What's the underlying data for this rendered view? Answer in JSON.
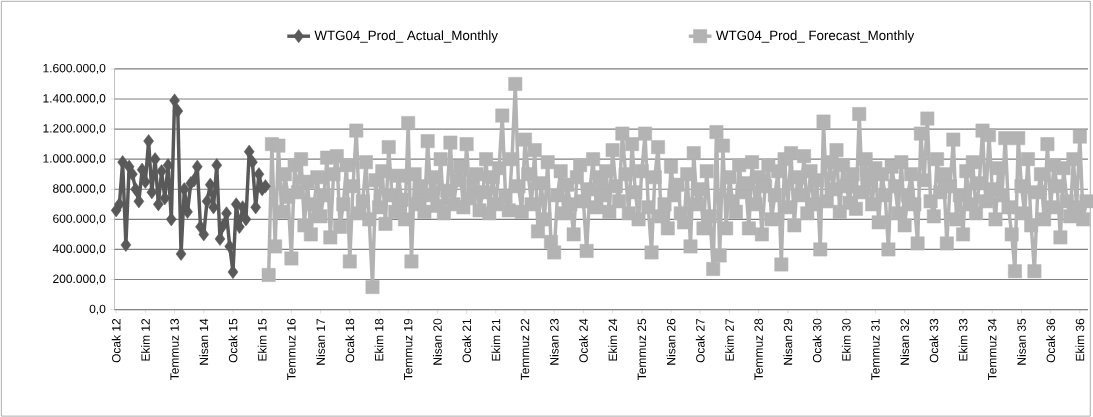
{
  "chart_data": {
    "type": "line",
    "categories": [
      "Ocak 12",
      null,
      null,
      null,
      null,
      null,
      null,
      null,
      null,
      "Ekim 12",
      null,
      null,
      null,
      null,
      null,
      null,
      null,
      null,
      "Temmuz 13",
      null,
      null,
      null,
      null,
      null,
      null,
      null,
      null,
      "Nisan 14",
      null,
      null,
      null,
      null,
      null,
      null,
      null,
      null,
      "Ocak 15",
      null,
      null,
      null,
      null,
      null,
      null,
      null,
      null,
      "Ekim 15",
      null,
      null,
      null,
      null,
      null,
      null,
      null,
      null,
      "Temmuz 16",
      null,
      null,
      null,
      null,
      null,
      null,
      null,
      null,
      "Nisan 17",
      null,
      null,
      null,
      null,
      null,
      null,
      null,
      null,
      "Ocak 18",
      null,
      null,
      null,
      null,
      null,
      null,
      null,
      null,
      "Ekim 18",
      null,
      null,
      null,
      null,
      null,
      null,
      null,
      null,
      "Temmuz 19",
      null,
      null,
      null,
      null,
      null,
      null,
      null,
      null,
      "Nisan 20",
      null,
      null,
      null,
      null,
      null,
      null,
      null,
      null,
      "Ocak 21",
      null,
      null,
      null,
      null,
      null,
      null,
      null,
      null,
      "Ekim 21",
      null,
      null,
      null,
      null,
      null,
      null,
      null,
      null,
      "Temmuz 22",
      null,
      null,
      null,
      null,
      null,
      null,
      null,
      null,
      "Nisan 23",
      null,
      null,
      null,
      null,
      null,
      null,
      null,
      null,
      "Ocak 24",
      null,
      null,
      null,
      null,
      null,
      null,
      null,
      null,
      "Ekim 24",
      null,
      null,
      null,
      null,
      null,
      null,
      null,
      null,
      "Temmuz 25",
      null,
      null,
      null,
      null,
      null,
      null,
      null,
      null,
      "Nisan 26",
      null,
      null,
      null,
      null,
      null,
      null,
      null,
      null,
      "Ocak 27",
      null,
      null,
      null,
      null,
      null,
      null,
      null,
      null,
      "Ekim 27",
      null,
      null,
      null,
      null,
      null,
      null,
      null,
      null,
      "Temmuz 28",
      null,
      null,
      null,
      null,
      null,
      null,
      null,
      null,
      "Nisan 29",
      null,
      null,
      null,
      null,
      null,
      null,
      null,
      null,
      "Ocak 30",
      null,
      null,
      null,
      null,
      null,
      null,
      null,
      null,
      "Ekim 30",
      null,
      null,
      null,
      null,
      null,
      null,
      null,
      null,
      "Temmuz 31",
      null,
      null,
      null,
      null,
      null,
      null,
      null,
      null,
      "Nisan 32",
      null,
      null,
      null,
      null,
      null,
      null,
      null,
      null,
      "Ocak 33",
      null,
      null,
      null,
      null,
      null,
      null,
      null,
      null,
      "Ekim 33",
      null,
      null,
      null,
      null,
      null,
      null,
      null,
      null,
      "Temmuz 34",
      null,
      null,
      null,
      null,
      null,
      null,
      null,
      null,
      "Nisan 35",
      null,
      null,
      null,
      null,
      null,
      null,
      null,
      null,
      "Ocak 36",
      null,
      null,
      null,
      null,
      null,
      null,
      null,
      null,
      "Ekim 36",
      null,
      null
    ],
    "series": [
      {
        "name": "WTG04_Prod_ Actual_Monthly",
        "color": "#595959",
        "marker": "diamond",
        "values": [
          660000,
          700000,
          980000,
          430000,
          950000,
          900000,
          800000,
          720000,
          930000,
          850000,
          1120000,
          780000,
          1000000,
          700000,
          920000,
          740000,
          960000,
          600000,
          1390000,
          1320000,
          370000,
          800000,
          650000,
          840000,
          860000,
          950000,
          550000,
          500000,
          720000,
          830000,
          680000,
          960000,
          470000,
          560000,
          640000,
          420000,
          250000,
          700000,
          550000,
          680000,
          600000,
          1050000,
          980000,
          680000,
          900000,
          800000,
          820000,
          null,
          null,
          null,
          null,
          null,
          null,
          null,
          null,
          null,
          null,
          null,
          null,
          null,
          null,
          null,
          null,
          null,
          null,
          null,
          null,
          null,
          null,
          null,
          null,
          null,
          null,
          null,
          null,
          null,
          null,
          null,
          null,
          null,
          null,
          null,
          null,
          null,
          null,
          null,
          null,
          null,
          null,
          null,
          null,
          null,
          null,
          null,
          null,
          null,
          null,
          null,
          null,
          null,
          null,
          null,
          null,
          null,
          null,
          null,
          null,
          null,
          null,
          null,
          null,
          null,
          null,
          null,
          null,
          null,
          null,
          null,
          null,
          null,
          null,
          null,
          null,
          null,
          null,
          null,
          null,
          null,
          null,
          null,
          null,
          null,
          null,
          null,
          null,
          null,
          null,
          null,
          null,
          null,
          null,
          null,
          null,
          null,
          null,
          null,
          null,
          null,
          null,
          null,
          null,
          null,
          null,
          null,
          null,
          null,
          null,
          null,
          null,
          null,
          null,
          null,
          null,
          null,
          null,
          null,
          null,
          null,
          null,
          null,
          null,
          null,
          null,
          null,
          null,
          null,
          null,
          null,
          null,
          null,
          null,
          null,
          null,
          null,
          null,
          null,
          null,
          null,
          null,
          null,
          null,
          null,
          null,
          null,
          null,
          null,
          null,
          null,
          null,
          null,
          null,
          null,
          null,
          null,
          null,
          null,
          null,
          null,
          null,
          null,
          null,
          null,
          null,
          null,
          null,
          null,
          null,
          null,
          null,
          null,
          null,
          null,
          null,
          null,
          null,
          null,
          null,
          null,
          null,
          null,
          null,
          null,
          null,
          null,
          null,
          null,
          null,
          null,
          null,
          null,
          null,
          null,
          null,
          null,
          null,
          null,
          null,
          null,
          null,
          null,
          null,
          null,
          null,
          null,
          null,
          null,
          null,
          null,
          null,
          null,
          null,
          null,
          null,
          null,
          null,
          null,
          null,
          null,
          null,
          null,
          null,
          null,
          null,
          null,
          null,
          null,
          null,
          null,
          null,
          null,
          null,
          null,
          null,
          null,
          null,
          null,
          null,
          null,
          null,
          null,
          null,
          null,
          null,
          null,
          null,
          null,
          null,
          null,
          null,
          null
        ]
      },
      {
        "name": "WTG04_Prod_ Forecast_Monthly",
        "color": "#b3b3b3",
        "marker": "square",
        "values": [
          null,
          null,
          null,
          null,
          null,
          null,
          null,
          null,
          null,
          null,
          null,
          null,
          null,
          null,
          null,
          null,
          null,
          null,
          null,
          null,
          null,
          null,
          null,
          null,
          null,
          null,
          null,
          null,
          null,
          null,
          null,
          null,
          null,
          null,
          null,
          null,
          null,
          null,
          null,
          null,
          null,
          null,
          null,
          null,
          null,
          null,
          null,
          230000,
          1100000,
          420000,
          1090000,
          650000,
          900000,
          750000,
          340000,
          960000,
          780000,
          1000000,
          560000,
          850000,
          500000,
          700000,
          880000,
          620000,
          760000,
          1010000,
          480000,
          900000,
          1020000,
          550000,
          700000,
          960000,
          320000,
          820000,
          1190000,
          640000,
          720000,
          980000,
          600000,
          150000,
          860000,
          680000,
          920000,
          570000,
          1080000,
          760000,
          650000,
          890000,
          730000,
          600000,
          1240000,
          320000,
          900000,
          700000,
          820000,
          650000,
          1120000,
          760000,
          880000,
          690000,
          1000000,
          640000,
          790000,
          1110000,
          700000,
          860000,
          950000,
          680000,
          1100000,
          740000,
          820000,
          900000,
          660000,
          780000,
          1000000,
          640000,
          880000,
          700000,
          940000,
          1290000,
          750000,
          660000,
          1000000,
          1500000,
          820000,
          650000,
          1130000,
          900000,
          700000,
          1060000,
          520000,
          840000,
          600000,
          980000,
          450000,
          380000,
          760000,
          920000,
          640000,
          830000,
          700000,
          500000,
          880000,
          960000,
          720000,
          390000,
          800000,
          1000000,
          680000,
          880000,
          760000,
          920000,
          650000,
          1060000,
          820000,
          720000,
          1170000,
          900000,
          640000,
          1100000,
          780000,
          600000,
          920000,
          1170000,
          680000,
          380000,
          880000,
          1080000,
          620000,
          700000,
          540000,
          950000,
          760000,
          830000,
          640000,
          580000,
          900000,
          420000,
          1040000,
          700000,
          800000,
          540000,
          920000,
          620000,
          270000,
          1180000,
          360000,
          1090000,
          540000,
          880000,
          720000,
          650000,
          960000,
          780000,
          840000,
          540000,
          980000,
          700000,
          880000,
          500000,
          820000,
          960000,
          600000,
          760000,
          920000,
          300000,
          1000000,
          680000,
          1040000,
          560000,
          880000,
          760000,
          1020000,
          640000,
          920000,
          700000,
          860000,
          400000,
          1250000,
          720000,
          980000,
          800000,
          1060000,
          650000,
          960000,
          820000,
          710000,
          900000,
          670000,
          1300000,
          780000,
          1000000,
          860000,
          700000,
          940000,
          580000,
          900000,
          760000,
          400000,
          950000,
          820000,
          640000,
          980000,
          560000,
          760000,
          900000,
          700000,
          440000,
          1170000,
          860000,
          1270000,
          720000,
          620000,
          1000000,
          780000,
          900000,
          440000,
          820000,
          1130000,
          600000,
          760000,
          500000,
          920000,
          700000,
          980000,
          640000,
          840000,
          1190000,
          720000,
          1160000,
          800000,
          600000,
          940000,
          760000,
          1140000,
          680000,
          500000,
          255000,
          1140000,
          820000,
          640000,
          1000000,
          560000,
          255000,
          780000,
          900000,
          600000,
          1100000,
          680000,
          960000,
          820000,
          480000,
          940000,
          720000,
          620000,
          1000000,
          680000,
          1150000,
          600000,
          720000
        ]
      }
    ],
    "ylim": [
      0,
      1600000
    ],
    "yticks": [
      {
        "value": 0,
        "label": "0,0"
      },
      {
        "value": 200000,
        "label": "200.000,0"
      },
      {
        "value": 400000,
        "label": "400.000,0"
      },
      {
        "value": 600000,
        "label": "600.000,0"
      },
      {
        "value": 800000,
        "label": "800.000,0"
      },
      {
        "value": 1000000,
        "label": "1.000.000,0"
      },
      {
        "value": 1200000,
        "label": "1.200.000,0"
      },
      {
        "value": 1400000,
        "label": "1.400.000,0"
      },
      {
        "value": 1600000,
        "label": "1.600.000,0"
      }
    ],
    "grid": "y",
    "legend": "top",
    "line_style": "solid"
  }
}
